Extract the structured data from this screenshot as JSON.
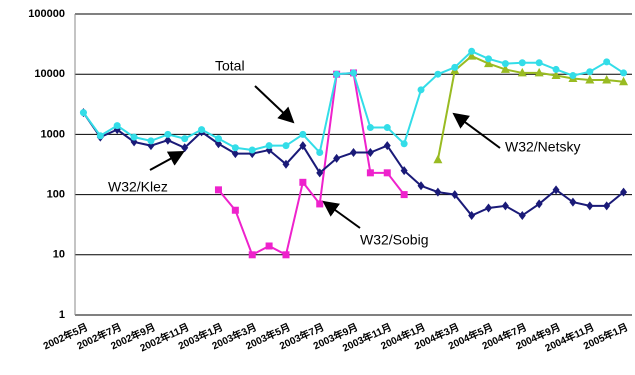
{
  "chart_data": {
    "type": "line",
    "log_scale": true,
    "grid": true,
    "categories": [
      "2002年5月",
      null,
      "2002年7月",
      null,
      "2002年9月",
      null,
      "2002年11月",
      null,
      "2003年1月",
      null,
      "2003年3月",
      null,
      "2003年5月",
      null,
      "2003年7月",
      null,
      "2003年9月",
      null,
      "2003年11月",
      null,
      "2004年1月",
      null,
      "2004年3月",
      null,
      "2004年5月",
      null,
      "2004年7月",
      null,
      "2004年9月",
      null,
      "2004年11月",
      null,
      "2005年1月"
    ],
    "series": [
      {
        "name": "Total",
        "color": "#33dde8",
        "marker": "circle",
        "values": [
          2300,
          950,
          1400,
          900,
          780,
          1000,
          850,
          1200,
          850,
          600,
          550,
          650,
          650,
          1000,
          500,
          10000,
          10500,
          1300,
          1300,
          700,
          5500,
          10000,
          13000,
          24000,
          18000,
          15000,
          15500,
          15500,
          12000,
          9500,
          11000,
          16000,
          10500
        ]
      },
      {
        "name": "W32/Klez",
        "color": "#1a1a78",
        "marker": "diamond",
        "values": [
          2300,
          900,
          1200,
          750,
          650,
          800,
          600,
          1100,
          700,
          480,
          480,
          550,
          320,
          650,
          230,
          400,
          500,
          500,
          650,
          250,
          140,
          110,
          100,
          45,
          60,
          65,
          45,
          70,
          120,
          75,
          65,
          65,
          110
        ]
      },
      {
        "name": "W32/Sobig",
        "color": "#ee22cc",
        "marker": "square",
        "values": [
          null,
          null,
          null,
          null,
          null,
          null,
          null,
          null,
          120,
          55,
          10,
          14,
          10,
          160,
          70,
          10000,
          10500,
          230,
          230,
          100,
          null,
          null,
          null,
          null,
          null,
          null,
          null,
          null,
          null,
          null,
          null,
          null,
          null
        ]
      },
      {
        "name": "W32/Netsky",
        "color": "#99bb22",
        "marker": "triangle",
        "values": [
          null,
          null,
          null,
          null,
          null,
          null,
          null,
          null,
          null,
          null,
          null,
          null,
          null,
          null,
          null,
          null,
          null,
          null,
          null,
          null,
          null,
          380,
          11500,
          20000,
          15000,
          12000,
          10500,
          10500,
          9500,
          8500,
          8000,
          8000,
          7500
        ]
      }
    ],
    "ylim": [
      1,
      100000
    ],
    "yticks": [
      1,
      10,
      100,
      1000,
      10000,
      100000
    ]
  }
}
